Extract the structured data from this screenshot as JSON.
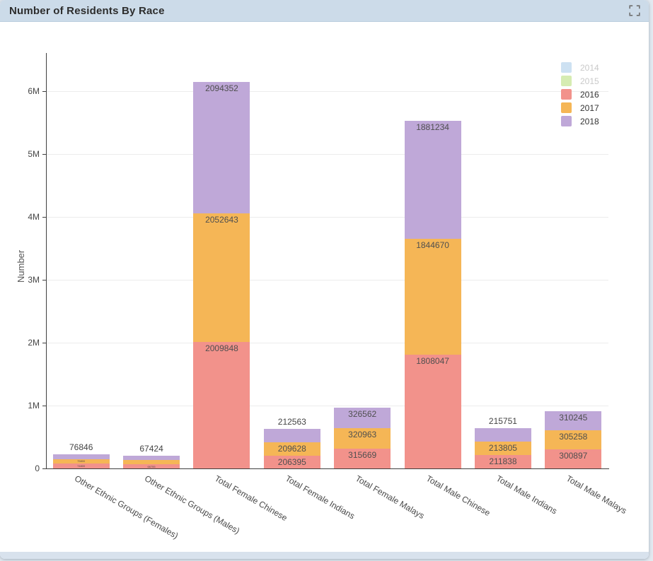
{
  "panel": {
    "title": "Number of Residents By Race",
    "expand_icon": "fullscreen-expand-icon",
    "colors": {
      "header_bg": "#ccdbe9",
      "footer_bg": "#d8e2ed",
      "page_bg": "#e2e9f0",
      "card_bg": "#ffffff",
      "title_color": "#2d2d2d",
      "disabled_legend_text": "#c9c9c9"
    }
  },
  "chart_data": {
    "type": "bar",
    "stacked": true,
    "title": "Number of Residents By Race",
    "xlabel": "",
    "ylabel": "Number",
    "ylim": [
      0,
      6500000
    ],
    "grid": true,
    "legend_position": "top-right",
    "yticks": [
      {
        "label": "0",
        "value": 0
      },
      {
        "label": "1M",
        "value": 1000000
      },
      {
        "label": "2M",
        "value": 2000000
      },
      {
        "label": "3M",
        "value": 3000000
      },
      {
        "label": "4M",
        "value": 4000000
      },
      {
        "label": "5M",
        "value": 5000000
      },
      {
        "label": "6M",
        "value": 6000000
      }
    ],
    "categories": [
      "Other Ethnic Groups (Females)",
      "Other Ethnic Groups (Males)",
      "Total Female Chinese",
      "Total Female Indians",
      "Total Female Malays",
      "Total Male Chinese",
      "Total Male Indians",
      "Total Male Malays"
    ],
    "series": [
      {
        "name": "2014",
        "color": "#cde1f2",
        "enabled": false,
        "values": []
      },
      {
        "name": "2015",
        "color": "#d6ecb2",
        "enabled": false,
        "values": []
      },
      {
        "name": "2016",
        "color": "#f2928b",
        "enabled": true,
        "values": [
          74800,
          66755,
          2009848,
          206395,
          315669,
          1808047,
          211838,
          300897
        ]
      },
      {
        "name": "2017",
        "color": "#f5b656",
        "enabled": true,
        "values": [
          75800,
          67100,
          2052643,
          209628,
          320963,
          1844670,
          213805,
          305258
        ]
      },
      {
        "name": "2018",
        "color": "#bfa8d8",
        "enabled": true,
        "values": [
          76846,
          67424,
          2094352,
          212563,
          326562,
          1881234,
          215751,
          310245
        ]
      }
    ],
    "value_labels": {
      "above": [
        "76846",
        "67424",
        null,
        "212563",
        null,
        null,
        "215751",
        null
      ],
      "inside": [
        {
          "2016": "tiny",
          "2017": "tiny",
          "2018": "none"
        },
        {
          "2016": "tiny",
          "2017": "none",
          "2018": "none"
        },
        {
          "2016": "normal",
          "2017": "normal",
          "2018": "normal"
        },
        {
          "2016": "normal",
          "2017": "normal",
          "2018": "none"
        },
        {
          "2016": "normal",
          "2017": "normal",
          "2018": "normal"
        },
        {
          "2016": "normal",
          "2017": "normal",
          "2018": "normal"
        },
        {
          "2016": "normal",
          "2017": "normal",
          "2018": "none"
        },
        {
          "2016": "normal",
          "2017": "normal",
          "2018": "normal"
        }
      ]
    }
  }
}
